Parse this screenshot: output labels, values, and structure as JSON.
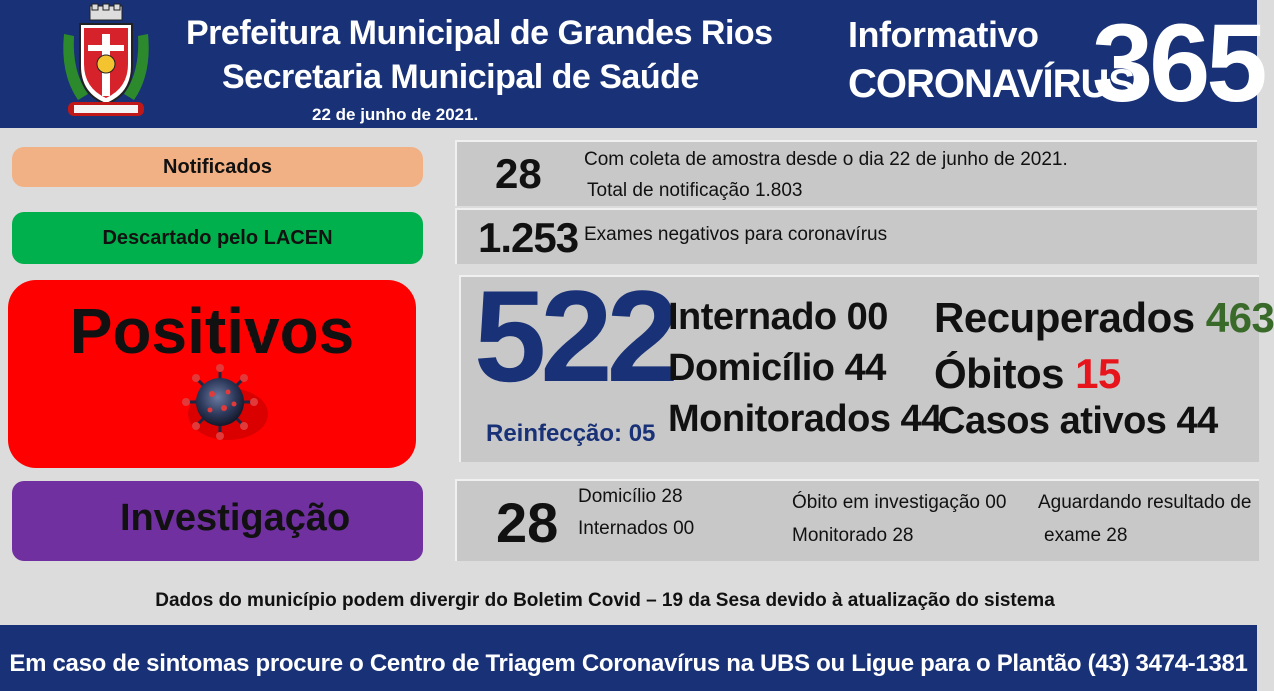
{
  "header": {
    "title_line1": "Prefeitura Municipal de Grandes Rios",
    "title_line2": "Secretaria Municipal de Saúde",
    "date": "22 de junho  de  2021.",
    "info_title": "Informativo",
    "info_subtitle": "CORONAVÍRUS",
    "issue_number": "365",
    "logo_icon": "municipal-coat-of-arms-icon"
  },
  "notificados": {
    "label": "Notificados",
    "value": "28",
    "line1": "Com coleta de amostra desde o dia 22 de junho de 2021.",
    "line2": "Total de notificação 1.803"
  },
  "descartado": {
    "label": "Descartado  pelo LACEN",
    "value": "1.253",
    "text": "Exames negativos  para coronavírus"
  },
  "positivos": {
    "label": "Positivos",
    "icon": "coronavirus-icon",
    "value": "522",
    "reinfeccao": "Reinfecção:  05",
    "internado": "Internado 00",
    "domicilio": "Domicílio 44",
    "monitorados": "Monitorados 44",
    "recuperados_label": "Recuperados",
    "recuperados_value": "463",
    "obitos_label": "Óbitos",
    "obitos_value": "15",
    "casos_ativos": "Casos ativos 44"
  },
  "investigacao": {
    "label": "Investigação",
    "value": "28",
    "domicilio": "Domicílio 28",
    "internados": "Internados 00",
    "obito": "Óbito  em investigação  00",
    "monitorado": "Monitorado 28",
    "aguardando1": "Aguardando resultado de",
    "aguardando2": "exame 28"
  },
  "disclaimer": "Dados  do município  podem  divergir  do Boletim  Covid – 19 da Sesa devido à atualização  do sistema",
  "footer": "Em  caso de  sintomas  procure  o Centro de Triagem  Coronavírus  na UBS ou Ligue  para  o Plantão  (43) 3474-1381",
  "colors": {
    "navy": "#183177",
    "notificados": "#f2b184",
    "descartado": "#00b04c",
    "positivos": "#ff0000",
    "investigacao": "#7030a0",
    "recuperados": "#3a6a2a",
    "obitos": "#e8141c"
  }
}
